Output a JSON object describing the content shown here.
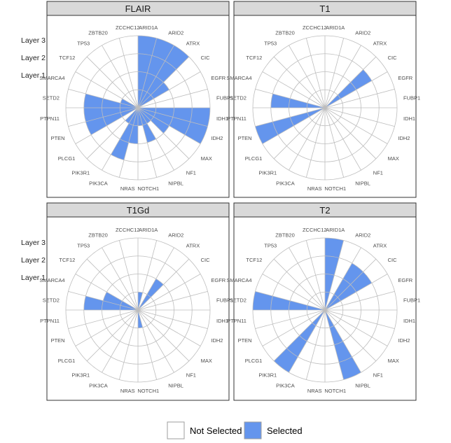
{
  "chart_data": {
    "type": "radial-bar",
    "genes": [
      "ARID1A",
      "ARID2",
      "ATRX",
      "CIC",
      "EGFR",
      "FUBP1",
      "IDH1",
      "IDH2",
      "MAX",
      "NF1",
      "NIPBL",
      "NOTCH1",
      "NRAS",
      "PIK3CA",
      "PIK3R1",
      "PLCG1",
      "PTEN",
      "PTPN11",
      "SETD2",
      "SMARCA4",
      "TCF12",
      "TP53",
      "ZBTB20",
      "ZCCHC12"
    ],
    "layer_labels": [
      "Layer 3",
      "Layer 2",
      "Layer 1"
    ],
    "layers": 4,
    "legend": {
      "not_selected": "Not Selected",
      "selected": "Selected"
    },
    "colors": {
      "selected": "#6495ED",
      "not_selected": "#FFFFFF",
      "grid": "#BDBDBD",
      "strip": "#D9D9D9"
    },
    "panels": [
      {
        "name": "FLAIR",
        "values": {
          "ARID1A": 4,
          "ARID2": 4,
          "ATRX": 4,
          "CIC": 2,
          "IDH1": 4,
          "IDH2": 4,
          "MAX": 2,
          "NF1": 1,
          "NIPBL": 2,
          "NOTCH1": 1,
          "NRAS": 2,
          "PIK3CA": 3,
          "PIK3R1": 1,
          "PTEN": 3,
          "PTPN11": 3,
          "SETD2": 3,
          "SMARCA4": 1
        }
      },
      {
        "name": "T1",
        "values": {
          "CIC": 3,
          "PTEN": 4,
          "SETD2": 3
        }
      },
      {
        "name": "T1Gd",
        "values": {
          "ARID1A": 1,
          "ATRX": 2,
          "NOTCH1": 1,
          "SETD2": 3,
          "SMARCA4": 2
        }
      },
      {
        "name": "T2",
        "values": {
          "ARID1A": 4,
          "ATRX": 3,
          "CIC": 3,
          "NIPBL": 4,
          "PIK3R1": 4,
          "SETD2": 4
        }
      }
    ]
  }
}
